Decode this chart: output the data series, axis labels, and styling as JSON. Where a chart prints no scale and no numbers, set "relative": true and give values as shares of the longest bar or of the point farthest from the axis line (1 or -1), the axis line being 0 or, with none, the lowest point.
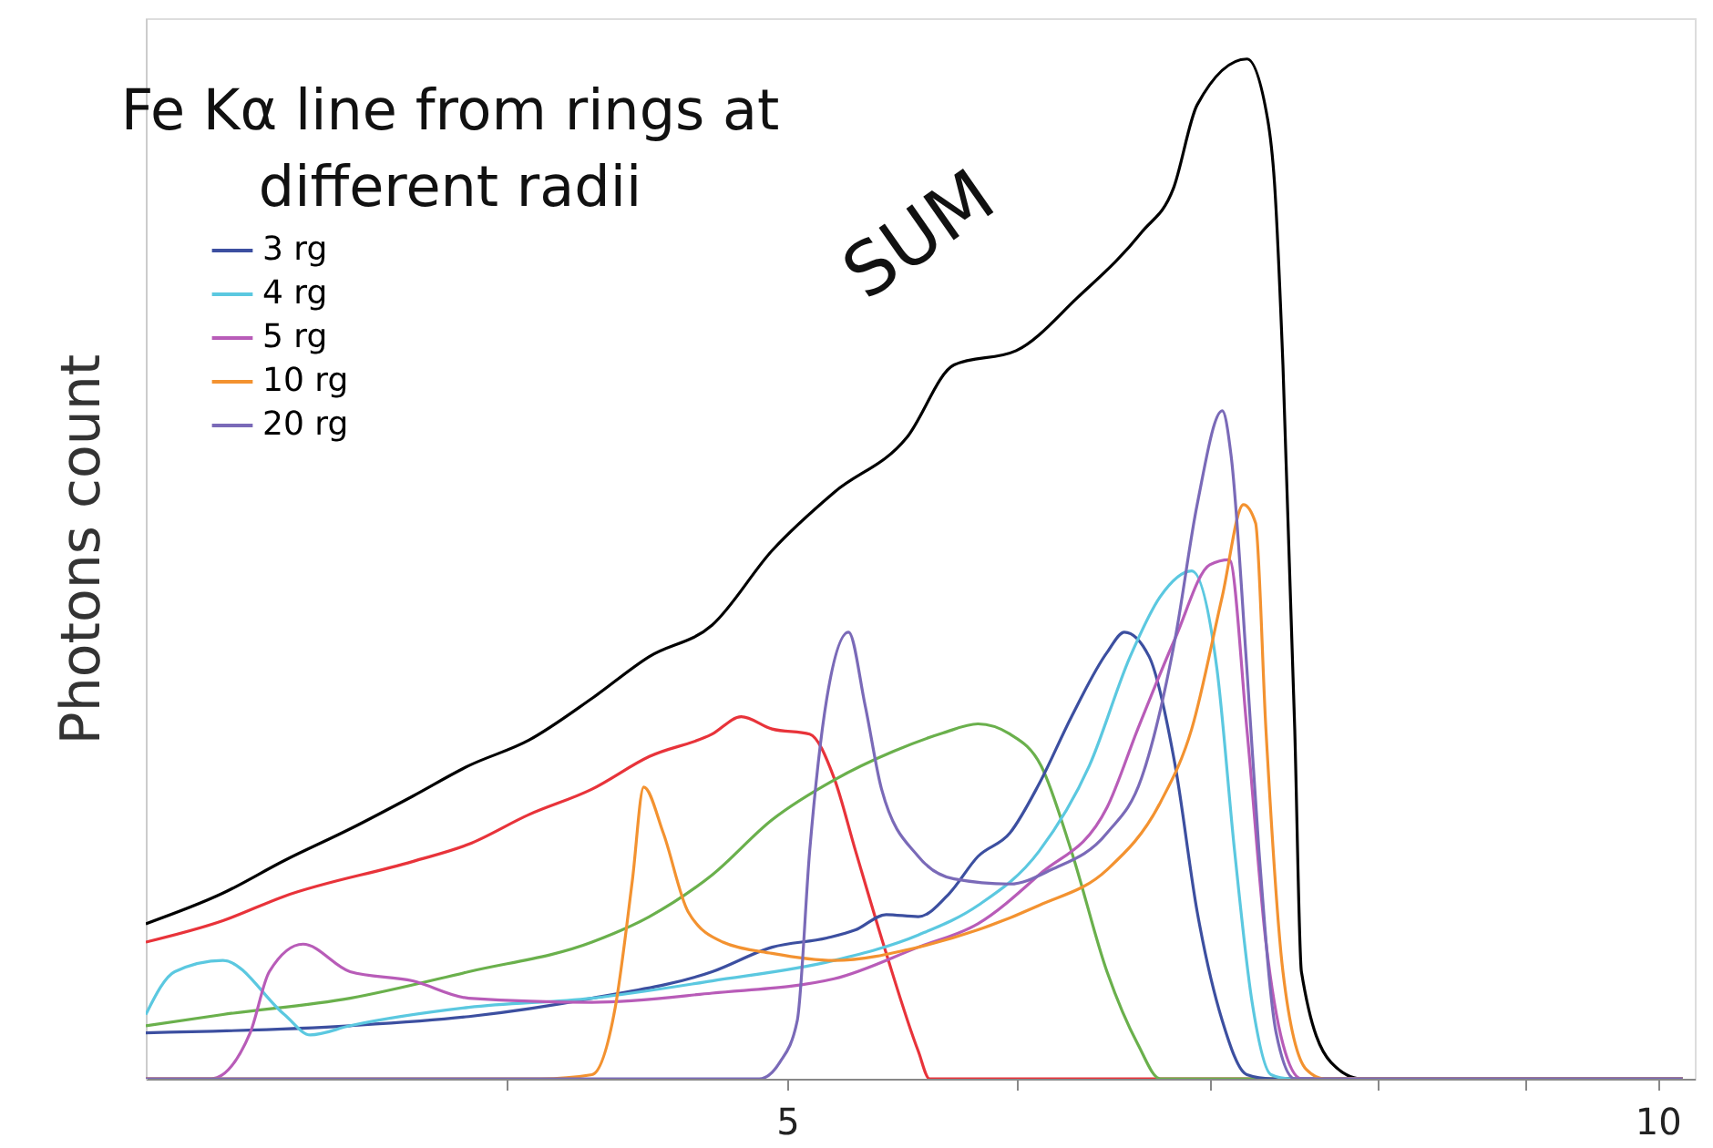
{
  "chart_data": {
    "type": "line",
    "title": "Fe Kα line from rings at different radii",
    "ylabel": "Photons count",
    "relative": true,
    "log": "x",
    "xlim": [
      3,
      10.3
    ],
    "xticks": [
      {
        "value": 4,
        "label": null
      },
      5,
      {
        "value": 6,
        "label": null
      },
      {
        "value": 7,
        "label": null
      },
      {
        "value": 8,
        "label": null
      },
      {
        "value": 9,
        "label": null
      },
      10
    ],
    "grid": false,
    "legend": "top left",
    "annotations": [
      "SUM"
    ],
    "series": [
      {
        "color": "#000000",
        "x": [
          3.0,
          3.19,
          3.35,
          3.53,
          3.71,
          3.88,
          4.07,
          4.28,
          4.48,
          4.71,
          4.94,
          5.19,
          5.5,
          5.71,
          6.0,
          6.3,
          6.63,
          6.8,
          6.93,
          7.21,
          7.33,
          7.37,
          7.42,
          7.49,
          7.53,
          7.71,
          7.9,
          10.2
        ],
        "values": [
          0.152,
          0.182,
          0.214,
          0.245,
          0.277,
          0.307,
          0.332,
          0.373,
          0.414,
          0.445,
          0.518,
          0.575,
          0.629,
          0.7,
          0.714,
          0.766,
          0.83,
          0.873,
          0.955,
          1.0,
          0.941,
          0.879,
          0.7,
          0.343,
          0.105,
          0.016,
          0,
          0
        ]
      },
      {
        "color": "#e8333a",
        "x": [
          3.0,
          3.19,
          3.35,
          3.71,
          3.88,
          4.07,
          4.28,
          4.48,
          4.71,
          4.82,
          4.94,
          5.09,
          5.19,
          5.28,
          5.41,
          5.55,
          5.6,
          10.2
        ],
        "values": [
          0.134,
          0.155,
          0.179,
          0.213,
          0.23,
          0.259,
          0.284,
          0.316,
          0.338,
          0.355,
          0.343,
          0.338,
          0.295,
          0.223,
          0.123,
          0.027,
          0,
          0
        ]
      },
      {
        "color": "#6ab04c",
        "x": [
          3.0,
          3.19,
          3.53,
          3.88,
          4.28,
          4.48,
          4.71,
          4.94,
          5.19,
          5.44,
          5.66,
          5.82,
          5.97,
          6.12,
          6.27,
          6.45,
          6.61,
          6.73,
          10.2
        ],
        "values": [
          0.052,
          0.063,
          0.079,
          0.105,
          0.134,
          0.159,
          0.2,
          0.254,
          0.293,
          0.321,
          0.339,
          0.348,
          0.338,
          0.307,
          0.223,
          0.105,
          0.034,
          0,
          0
        ]
      },
      {
        "name": "3 rg",
        "color": "#3c4fa0",
        "x": [
          3.0,
          3.53,
          3.88,
          4.28,
          4.71,
          4.94,
          5.16,
          5.28,
          5.41,
          5.55,
          5.69,
          5.82,
          5.97,
          6.11,
          6.27,
          6.45,
          6.54,
          6.67,
          6.81,
          6.93,
          7.07,
          7.21,
          7.35,
          10.2
        ],
        "values": [
          0.045,
          0.052,
          0.061,
          0.079,
          0.105,
          0.129,
          0.138,
          0.146,
          0.161,
          0.159,
          0.182,
          0.218,
          0.241,
          0.289,
          0.355,
          0.418,
          0.438,
          0.414,
          0.307,
          0.164,
          0.057,
          0.004,
          0,
          0
        ]
      },
      {
        "name": "4 rg",
        "color": "#5bc8e0",
        "x": [
          3.0,
          3.07,
          3.19,
          3.35,
          3.42,
          3.53,
          3.88,
          4.28,
          4.71,
          5.19,
          5.55,
          5.82,
          6.11,
          6.36,
          6.57,
          6.73,
          6.9,
          7.04,
          7.14,
          7.24,
          7.35,
          7.46,
          10.2
        ],
        "values": [
          0.063,
          0.105,
          0.116,
          0.063,
          0.043,
          0.052,
          0.07,
          0.079,
          0.096,
          0.116,
          0.141,
          0.17,
          0.223,
          0.307,
          0.414,
          0.473,
          0.498,
          0.402,
          0.223,
          0.075,
          0.004,
          0,
          0
        ]
      },
      {
        "name": "5 rg",
        "color": "#b85cb8",
        "x": [
          3.0,
          3.16,
          3.26,
          3.31,
          3.4,
          3.53,
          3.71,
          3.88,
          4.28,
          4.71,
          5.19,
          5.55,
          5.82,
          6.11,
          6.45,
          6.61,
          6.81,
          7.0,
          7.11,
          7.21,
          7.32,
          7.42,
          7.53,
          10.2
        ],
        "values": [
          0,
          0,
          0.045,
          0.105,
          0.132,
          0.105,
          0.096,
          0.079,
          0.075,
          0.084,
          0.098,
          0.129,
          0.152,
          0.2,
          0.266,
          0.343,
          0.432,
          0.504,
          0.509,
          0.343,
          0.134,
          0.034,
          0,
          0
        ]
      },
      {
        "name": "10 rg",
        "color": "#f39230",
        "x": [
          3.0,
          4.11,
          4.28,
          4.36,
          4.42,
          4.46,
          4.53,
          4.62,
          4.75,
          4.94,
          5.19,
          5.55,
          5.82,
          6.11,
          6.45,
          6.73,
          6.9,
          7.07,
          7.19,
          7.26,
          7.32,
          7.42,
          7.56,
          7.67,
          10.2
        ],
        "values": [
          0,
          0,
          0.004,
          0.07,
          0.195,
          0.286,
          0.241,
          0.164,
          0.134,
          0.123,
          0.116,
          0.129,
          0.146,
          0.17,
          0.205,
          0.271,
          0.343,
          0.473,
          0.563,
          0.545,
          0.343,
          0.105,
          0.009,
          0,
          0
        ]
      },
      {
        "name": "20 rg",
        "color": "#7a6ab8",
        "x": [
          3.0,
          4.89,
          4.97,
          5.04,
          5.09,
          5.16,
          5.25,
          5.32,
          5.39,
          5.55,
          5.71,
          5.97,
          6.17,
          6.45,
          6.63,
          6.81,
          6.93,
          7.07,
          7.12,
          7.21,
          7.28,
          7.38,
          7.49,
          10.2
        ],
        "values": [
          0,
          0,
          0.016,
          0.057,
          0.223,
          0.373,
          0.438,
          0.366,
          0.284,
          0.218,
          0.196,
          0.191,
          0.205,
          0.241,
          0.295,
          0.432,
          0.563,
          0.655,
          0.611,
          0.402,
          0.223,
          0.045,
          0,
          0
        ]
      }
    ]
  }
}
